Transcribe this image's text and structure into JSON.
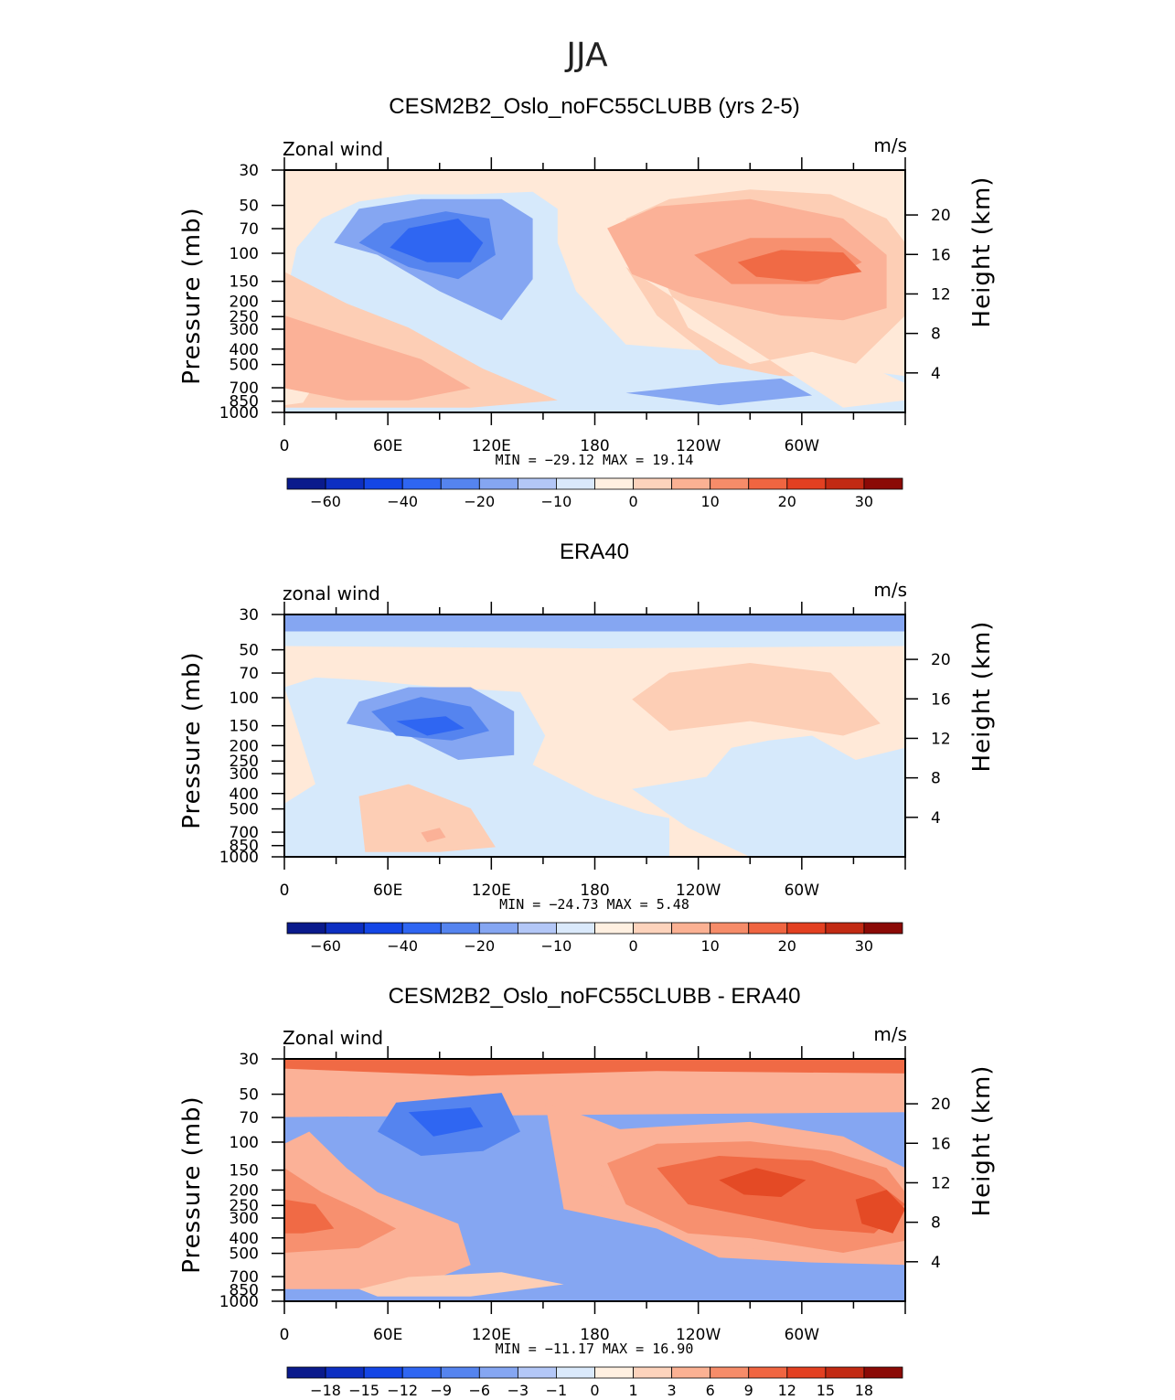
{
  "figure_title": "JJA",
  "colors": {
    "panel_fill": [
      "#d6e9fb",
      "#ffe9d8",
      "#fdceb5",
      "#fbb197",
      "#f7906f",
      "#f06a45",
      "#e44a25"
    ],
    "cbar_colors": [
      "#0a1a8c",
      "#0d2fc2",
      "#1446e6",
      "#2f66f2",
      "#5584ef",
      "#85a6f2",
      "#b3c7f7",
      "#dae9fb",
      "#fff0e1",
      "#fdd3bc",
      "#fbb193",
      "#f68c69",
      "#f06541",
      "#e34021",
      "#c22a13",
      "#8b0a06"
    ]
  },
  "chart_data": [
    {
      "type": "heatmap",
      "title": "CESM2B2_Oslo_noFC55CLUBB (yrs 2-5)",
      "left_label": "Zonal wind",
      "right_label": "m/s",
      "ylabel": "Pressure (mb)",
      "y2label": "Height (km)",
      "xticks": [
        "0",
        "60E",
        "120E",
        "180",
        "120W",
        "60W"
      ],
      "yticks": [
        "30",
        "50",
        "70",
        "100",
        "150",
        "200",
        "250",
        "300",
        "400",
        "500",
        "700",
        "850",
        "1000"
      ],
      "y2ticks": [
        "20",
        "16",
        "12",
        "8",
        "4"
      ],
      "stats": "MIN = −29.12   MAX =  19.14",
      "cbar_labels": [
        "−60",
        "−40",
        "−20",
        "−10",
        "0",
        "10",
        "20",
        "30"
      ],
      "min": -29.12,
      "max": 19.14
    },
    {
      "type": "heatmap",
      "title": "ERA40",
      "left_label": "zonal wind",
      "right_label": "m/s",
      "ylabel": "Pressure (mb)",
      "y2label": "Height (km)",
      "xticks": [
        "0",
        "60E",
        "120E",
        "180",
        "120W",
        "60W"
      ],
      "yticks": [
        "30",
        "50",
        "70",
        "100",
        "150",
        "200",
        "250",
        "300",
        "400",
        "500",
        "700",
        "850",
        "1000"
      ],
      "y2ticks": [
        "20",
        "16",
        "12",
        "8",
        "4"
      ],
      "stats": "MIN = −24.73   MAX =   5.48",
      "cbar_labels": [
        "−60",
        "−40",
        "−20",
        "−10",
        "0",
        "10",
        "20",
        "30"
      ],
      "min": -24.73,
      "max": 5.48
    },
    {
      "type": "heatmap",
      "title": "CESM2B2_Oslo_noFC55CLUBB - ERA40",
      "left_label": "Zonal wind",
      "right_label": "m/s",
      "ylabel": "Pressure (mb)",
      "y2label": "Height (km)",
      "xticks": [
        "0",
        "60E",
        "120E",
        "180",
        "120W",
        "60W"
      ],
      "yticks": [
        "30",
        "50",
        "70",
        "100",
        "150",
        "200",
        "250",
        "300",
        "400",
        "500",
        "700",
        "850",
        "1000"
      ],
      "y2ticks": [
        "20",
        "16",
        "12",
        "8",
        "4"
      ],
      "stats": "MIN = −11.17   MAX =  16.90",
      "cbar_labels": [
        "−18",
        "−15",
        "−12",
        "−9",
        "−6",
        "−3",
        "−1",
        "0",
        "1",
        "3",
        "6",
        "9",
        "12",
        "15",
        "18"
      ],
      "min": -11.17,
      "max": 16.9
    }
  ]
}
